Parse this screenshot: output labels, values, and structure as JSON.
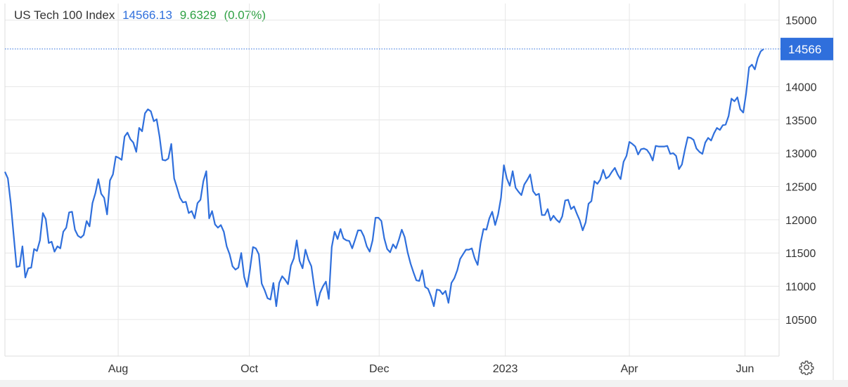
{
  "header": {
    "name": "US Tech 100 Index",
    "price": "14566.13",
    "change": "9.6329",
    "change_pct": "(0.07%)"
  },
  "colors": {
    "line": "#2f6fdc",
    "grid": "#e6e6e6",
    "price_tag": "#2f6fdc",
    "change_positive": "#2ea043"
  },
  "settings_icon": "gear-icon",
  "chart_data": {
    "type": "line",
    "title": "US Tech 100 Index",
    "last_value_label": "14566",
    "y_ticks": [
      10500,
      11000,
      11500,
      12000,
      12500,
      13000,
      13500,
      14000,
      15000
    ],
    "ylim": [
      9950,
      15250
    ],
    "x_ticks": [
      "Aug",
      "Oct",
      "Dec",
      "2023",
      "Apr",
      "Jun"
    ],
    "grid": true,
    "series": [
      {
        "values": [
          12720,
          12620,
          12250,
          11770,
          11290,
          11300,
          11600,
          11130,
          11270,
          11280,
          11560,
          11530,
          11690,
          12100,
          12010,
          11650,
          11670,
          11520,
          11600,
          11570,
          11820,
          11880,
          12110,
          12120,
          11850,
          11760,
          11730,
          11770,
          11980,
          11900,
          12250,
          12400,
          12610,
          12390,
          12330,
          12080,
          12590,
          12680,
          12950,
          12930,
          12900,
          13250,
          13310,
          13210,
          13160,
          13020,
          13380,
          13330,
          13600,
          13660,
          13630,
          13480,
          13510,
          13250,
          12900,
          12890,
          12920,
          13140,
          12620,
          12480,
          12330,
          12260,
          12270,
          12100,
          12130,
          12020,
          12250,
          12300,
          12580,
          12730,
          12020,
          12130,
          11930,
          11880,
          11920,
          11820,
          11600,
          11480,
          11300,
          11250,
          11280,
          11500,
          11140,
          10990,
          11260,
          11590,
          11570,
          11480,
          11040,
          10940,
          10820,
          10800,
          11050,
          10700,
          11050,
          11150,
          11100,
          11030,
          11310,
          11420,
          11690,
          11380,
          11270,
          11550,
          11400,
          11300,
          10990,
          10710,
          10900,
          11000,
          11070,
          10810,
          11590,
          11820,
          11710,
          11860,
          11720,
          11690,
          11680,
          11570,
          11700,
          11840,
          11840,
          11750,
          11600,
          11520,
          11690,
          12030,
          12030,
          11980,
          11720,
          11560,
          11510,
          11630,
          11570,
          11700,
          11850,
          11740,
          11510,
          11340,
          11210,
          11090,
          11080,
          11240,
          10990,
          10960,
          10850,
          10700,
          10950,
          10940,
          10880,
          10930,
          10750,
          11050,
          11120,
          11240,
          11410,
          11480,
          11550,
          11550,
          11570,
          11420,
          11320,
          11650,
          11860,
          11850,
          12020,
          12120,
          11920,
          12080,
          12330,
          12820,
          12620,
          12510,
          12730,
          12480,
          12420,
          12370,
          12530,
          12600,
          12680,
          12430,
          12370,
          12390,
          12070,
          12070,
          12160,
          11990,
          12060,
          12000,
          11960,
          12050,
          12290,
          12300,
          12160,
          12200,
          12090,
          11990,
          11840,
          11960,
          12240,
          12280,
          12580,
          12540,
          12600,
          12750,
          12620,
          12650,
          12720,
          12780,
          12680,
          12610,
          12870,
          12960,
          13170,
          13140,
          13100,
          12980,
          13060,
          13070,
          13050,
          12990,
          12890,
          13110,
          13100,
          13100,
          13100,
          13110,
          12990,
          13000,
          12960,
          12760,
          12830,
          13050,
          13240,
          13230,
          13200,
          13070,
          13020,
          12990,
          13160,
          13230,
          13190,
          13300,
          13380,
          13350,
          13420,
          13430,
          13560,
          13820,
          13780,
          13840,
          13660,
          13610,
          13900,
          14290,
          14330,
          14260,
          14430,
          14530,
          14566
        ]
      }
    ]
  }
}
